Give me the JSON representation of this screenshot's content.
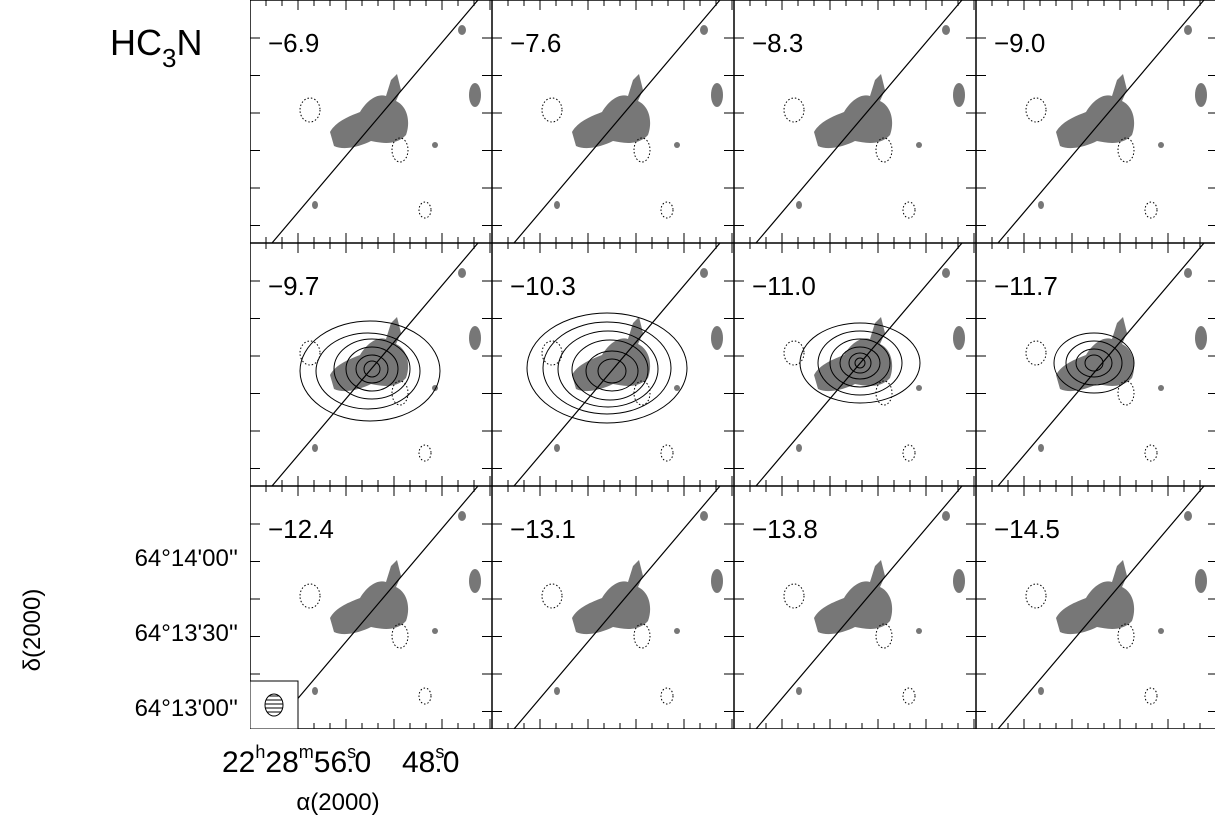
{
  "title": {
    "main": "HC",
    "sub": "3",
    "end": "N"
  },
  "panels": [
    "−6.9",
    "−7.6",
    "−8.3",
    "−9.0",
    "−9.7",
    "−10.3",
    "−11.0",
    "−11.7",
    "−12.4",
    "−13.1",
    "−13.8",
    "−14.5"
  ],
  "y_axis": {
    "label": "δ(2000)",
    "ticks": [
      "64°14'00''",
      "64°13'30''",
      "64°13'00''"
    ]
  },
  "x_axis": {
    "label": "α(2000)",
    "ticks": [
      {
        "parts": [
          "22",
          "h",
          "28",
          "m",
          "56",
          "s",
          ".0"
        ]
      },
      {
        "parts": [
          "48",
          "s",
          ".0"
        ]
      }
    ]
  }
}
